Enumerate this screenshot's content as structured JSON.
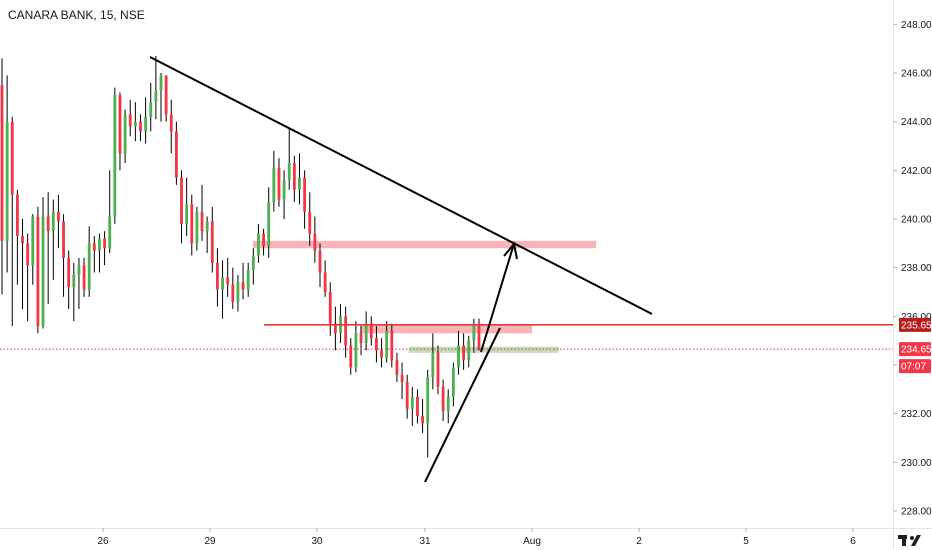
{
  "header": {
    "title": "CANARA BANK, 15, NSE"
  },
  "colors": {
    "up": "#26a69a",
    "down": "#ef5350",
    "up_candle": "#4caf50",
    "down_candle": "#f23645",
    "zone_red": "#f7a7a9",
    "zone_green": "#b5d6b0",
    "resistance_line": "#e53935",
    "price_line": "#e53935",
    "trend_line": "#000000"
  },
  "chart_data": {
    "type": "candlestick",
    "symbol": "CANARA BANK",
    "interval": "15",
    "exchange": "NSE",
    "ylim": [
      227.3,
      249.0
    ],
    "y_ticks": [
      "228.00",
      "230.00",
      "232.00",
      "234.00",
      "236.00",
      "238.00",
      "240.00",
      "242.00",
      "244.00",
      "246.00",
      "248.00"
    ],
    "x_ticks": [
      "26",
      "29",
      "30",
      "31",
      "Aug",
      "2",
      "5",
      "6"
    ],
    "price_labels": {
      "resistance": "235.65",
      "last_price": "234.65",
      "countdown": "07:07"
    },
    "resistance_level": 235.65,
    "last_price": 234.65,
    "ohlc_series": [
      [
        245.5,
        246.6,
        236.9,
        239.1
      ],
      [
        239.1,
        245.9,
        237.8,
        244.0
      ],
      [
        244.0,
        244.2,
        235.6,
        241.0
      ],
      [
        241.0,
        241.2,
        237.3,
        239.3
      ],
      [
        239.3,
        240.0,
        236.3,
        239.0
      ],
      [
        239.0,
        239.4,
        235.8,
        238.1
      ],
      [
        238.1,
        240.2,
        237.3,
        240.1
      ],
      [
        240.1,
        240.5,
        235.3,
        235.6
      ],
      [
        235.6,
        240.9,
        235.5,
        240.1
      ],
      [
        240.1,
        241.1,
        236.5,
        239.5
      ],
      [
        239.5,
        240.8,
        237.5,
        240.3
      ],
      [
        240.3,
        241.0,
        238.8,
        239.9
      ],
      [
        239.9,
        240.2,
        236.8,
        238.4
      ],
      [
        238.4,
        238.7,
        236.3,
        237.2
      ],
      [
        237.2,
        238.2,
        235.8,
        237.7
      ],
      [
        237.7,
        238.4,
        236.3,
        238.1
      ],
      [
        238.1,
        238.4,
        236.8,
        237.1
      ],
      [
        237.1,
        239.7,
        236.8,
        239.0
      ],
      [
        239.0,
        239.3,
        237.8,
        238.7
      ],
      [
        238.7,
        239.4,
        237.8,
        239.2
      ],
      [
        239.2,
        239.5,
        238.1,
        238.8
      ],
      [
        238.8,
        242.0,
        238.6,
        240.1
      ],
      [
        240.1,
        245.4,
        239.8,
        245.1
      ],
      [
        245.1,
        245.2,
        242.0,
        242.7
      ],
      [
        242.7,
        244.5,
        242.3,
        244.3
      ],
      [
        244.3,
        244.9,
        243.4,
        243.8
      ],
      [
        243.8,
        244.8,
        243.2,
        244.0
      ],
      [
        244.0,
        244.3,
        243.2,
        243.6
      ],
      [
        243.6,
        245.0,
        243.1,
        244.2
      ],
      [
        244.2,
        245.6,
        243.6,
        244.8
      ],
      [
        244.8,
        246.7,
        244.1,
        245.3
      ],
      [
        245.3,
        246.0,
        244.0,
        245.9
      ],
      [
        245.9,
        245.9,
        244.0,
        244.3
      ],
      [
        244.3,
        244.9,
        242.7,
        243.6
      ],
      [
        243.6,
        244.0,
        241.4,
        241.7
      ],
      [
        241.7,
        242.0,
        239.0,
        239.8
      ],
      [
        239.8,
        241.7,
        239.3,
        240.6
      ],
      [
        240.6,
        241.0,
        238.5,
        239.0
      ],
      [
        239.0,
        240.5,
        238.7,
        240.3
      ],
      [
        240.3,
        241.4,
        239.1,
        239.5
      ],
      [
        239.5,
        240.1,
        238.6,
        239.9
      ],
      [
        239.9,
        240.5,
        237.8,
        238.2
      ],
      [
        238.2,
        238.8,
        236.4,
        237.1
      ],
      [
        237.1,
        238.3,
        235.9,
        237.6
      ],
      [
        237.6,
        238.4,
        236.8,
        237.3
      ],
      [
        237.3,
        238.0,
        236.3,
        236.6
      ],
      [
        236.6,
        237.7,
        236.2,
        237.4
      ],
      [
        237.4,
        238.2,
        236.7,
        237.1
      ],
      [
        237.1,
        238.2,
        236.8,
        237.9
      ],
      [
        237.9,
        238.8,
        237.3,
        238.5
      ],
      [
        238.5,
        239.8,
        238.2,
        239.4
      ],
      [
        239.4,
        239.6,
        238.5,
        238.9
      ],
      [
        238.9,
        241.3,
        238.4,
        240.7
      ],
      [
        240.7,
        242.8,
        240.3,
        242.1
      ],
      [
        242.1,
        242.5,
        240.5,
        240.8
      ],
      [
        240.8,
        242.0,
        240.0,
        241.6
      ],
      [
        241.6,
        243.7,
        241.2,
        242.3
      ],
      [
        242.3,
        242.6,
        240.7,
        241.2
      ],
      [
        241.2,
        242.7,
        240.6,
        241.7
      ],
      [
        241.7,
        242.0,
        239.6,
        240.3
      ],
      [
        240.3,
        241.1,
        238.9,
        239.4
      ],
      [
        239.4,
        240.1,
        238.2,
        238.7
      ],
      [
        238.7,
        239.0,
        237.2,
        237.8
      ],
      [
        237.8,
        238.3,
        236.8,
        237.0
      ],
      [
        237.0,
        237.4,
        235.2,
        235.7
      ],
      [
        235.7,
        236.4,
        234.6,
        235.3
      ],
      [
        235.3,
        236.5,
        234.9,
        236.0
      ],
      [
        236.0,
        236.4,
        234.3,
        234.8
      ],
      [
        234.8,
        235.1,
        233.6,
        233.9
      ],
      [
        233.9,
        235.8,
        233.7,
        235.3
      ],
      [
        235.3,
        235.6,
        234.4,
        234.9
      ],
      [
        234.9,
        236.2,
        234.6,
        235.7
      ],
      [
        235.7,
        236.0,
        234.8,
        235.1
      ],
      [
        235.1,
        235.6,
        234.1,
        234.6
      ],
      [
        234.6,
        235.1,
        233.9,
        234.3
      ],
      [
        234.3,
        235.8,
        234.1,
        235.4
      ],
      [
        235.4,
        235.7,
        233.9,
        234.2
      ],
      [
        234.2,
        234.5,
        233.3,
        233.6
      ],
      [
        233.6,
        234.1,
        232.6,
        233.3
      ],
      [
        233.3,
        233.6,
        231.8,
        232.2
      ],
      [
        232.2,
        233.1,
        231.5,
        232.7
      ],
      [
        232.7,
        233.0,
        231.6,
        231.9
      ],
      [
        231.9,
        232.6,
        231.2,
        231.6
      ],
      [
        231.6,
        233.8,
        230.2,
        233.5
      ],
      [
        233.5,
        235.3,
        233.0,
        234.5
      ],
      [
        234.5,
        234.8,
        232.8,
        233.1
      ],
      [
        233.1,
        233.4,
        231.7,
        232.1
      ],
      [
        232.1,
        233.0,
        231.6,
        232.7
      ],
      [
        232.7,
        234.1,
        232.3,
        233.9
      ],
      [
        233.9,
        235.4,
        233.6,
        234.8
      ],
      [
        234.8,
        235.3,
        233.8,
        234.2
      ],
      [
        234.2,
        235.2,
        233.9,
        235.0
      ],
      [
        235.0,
        235.9,
        234.5,
        235.7
      ],
      [
        235.7,
        235.9,
        234.6,
        234.65
      ]
    ],
    "shapes": [
      {
        "kind": "trendline",
        "from": [
          6.3,
          246.6
        ],
        "to": [
          12.1,
          236.2
        ]
      },
      {
        "kind": "trendline",
        "from": [
          31.0,
          229.3
        ],
        "to": [
          31.7,
          235.6
        ]
      },
      {
        "kind": "zone",
        "level_top": 239.1,
        "level_bottom": 238.8,
        "x_from": 29.4,
        "x_to": 32.6
      },
      {
        "kind": "zone",
        "level_top": 235.65,
        "level_bottom": 235.3,
        "x_from": 30.4,
        "x_to": 32.0
      },
      {
        "kind": "zone",
        "level_top": 234.75,
        "level_bottom": 234.5,
        "x_from": 30.85,
        "x_to": 32.25
      }
    ]
  }
}
